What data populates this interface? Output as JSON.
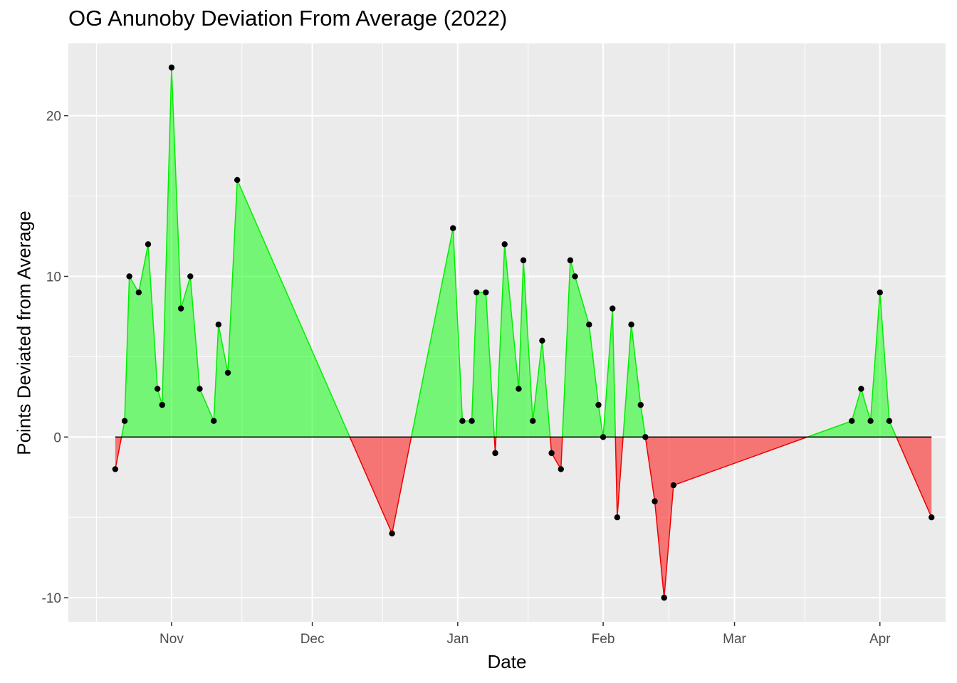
{
  "chart_data": {
    "type": "area",
    "title": "OG Anunoby Deviation From Average (2022)",
    "xlabel": "Date",
    "ylabel": "Points Deviated from Average",
    "xlim": [
      "2021-10-10",
      "2022-04-15"
    ],
    "ylim": [
      -11.5,
      24.5
    ],
    "x_major_ticks": [
      {
        "date": "2021-11-01",
        "label": "Nov"
      },
      {
        "date": "2021-12-01",
        "label": "Dec"
      },
      {
        "date": "2022-01-01",
        "label": "Jan"
      },
      {
        "date": "2022-02-01",
        "label": "Feb"
      },
      {
        "date": "2022-03-01",
        "label": "Mar"
      },
      {
        "date": "2022-04-01",
        "label": "Apr"
      }
    ],
    "x_minor_ticks": [
      "2021-10-16",
      "2021-11-16",
      "2021-12-16",
      "2022-01-16",
      "2022-02-15",
      "2022-03-16"
    ],
    "y_major_ticks": [
      -10,
      0,
      10,
      20
    ],
    "y_minor_ticks": [
      -5,
      5,
      15
    ],
    "baseline": 0,
    "colors": {
      "positive_fill": "#00ff00",
      "positive_line": "#00ee00",
      "negative_fill": "#ff0000",
      "negative_line": "#ee0000",
      "point": "#000000",
      "panel_bg": "#ebebeb",
      "grid": "#ffffff"
    },
    "points": [
      {
        "date": "2021-10-20",
        "value": -2
      },
      {
        "date": "2021-10-22",
        "value": 1
      },
      {
        "date": "2021-10-23",
        "value": 10
      },
      {
        "date": "2021-10-25",
        "value": 9
      },
      {
        "date": "2021-10-27",
        "value": 12
      },
      {
        "date": "2021-10-29",
        "value": 3
      },
      {
        "date": "2021-10-30",
        "value": 2
      },
      {
        "date": "2021-11-01",
        "value": 23
      },
      {
        "date": "2021-11-03",
        "value": 8
      },
      {
        "date": "2021-11-05",
        "value": 10
      },
      {
        "date": "2021-11-07",
        "value": 3
      },
      {
        "date": "2021-11-10",
        "value": 1
      },
      {
        "date": "2021-11-11",
        "value": 7
      },
      {
        "date": "2021-11-13",
        "value": 4
      },
      {
        "date": "2021-11-15",
        "value": 16
      },
      {
        "date": "2021-12-18",
        "value": -6
      },
      {
        "date": "2021-12-31",
        "value": 13
      },
      {
        "date": "2022-01-02",
        "value": 1
      },
      {
        "date": "2022-01-04",
        "value": 1
      },
      {
        "date": "2022-01-05",
        "value": 9
      },
      {
        "date": "2022-01-07",
        "value": 9
      },
      {
        "date": "2022-01-09",
        "value": -1
      },
      {
        "date": "2022-01-11",
        "value": 12
      },
      {
        "date": "2022-01-14",
        "value": 3
      },
      {
        "date": "2022-01-15",
        "value": 11
      },
      {
        "date": "2022-01-17",
        "value": 1
      },
      {
        "date": "2022-01-19",
        "value": 6
      },
      {
        "date": "2022-01-21",
        "value": -1
      },
      {
        "date": "2022-01-23",
        "value": -2
      },
      {
        "date": "2022-01-25",
        "value": 11
      },
      {
        "date": "2022-01-26",
        "value": 10
      },
      {
        "date": "2022-01-29",
        "value": 7
      },
      {
        "date": "2022-01-31",
        "value": 2
      },
      {
        "date": "2022-02-01",
        "value": 0
      },
      {
        "date": "2022-02-03",
        "value": 8
      },
      {
        "date": "2022-02-04",
        "value": -5
      },
      {
        "date": "2022-02-07",
        "value": 7
      },
      {
        "date": "2022-02-09",
        "value": 2
      },
      {
        "date": "2022-02-10",
        "value": 0
      },
      {
        "date": "2022-02-12",
        "value": -4
      },
      {
        "date": "2022-02-14",
        "value": -10
      },
      {
        "date": "2022-02-16",
        "value": -3
      },
      {
        "date": "2022-03-26",
        "value": 1
      },
      {
        "date": "2022-03-28",
        "value": 3
      },
      {
        "date": "2022-03-30",
        "value": 1
      },
      {
        "date": "2022-04-01",
        "value": 9
      },
      {
        "date": "2022-04-03",
        "value": 1
      },
      {
        "date": "2022-04-12",
        "value": -5
      }
    ]
  }
}
